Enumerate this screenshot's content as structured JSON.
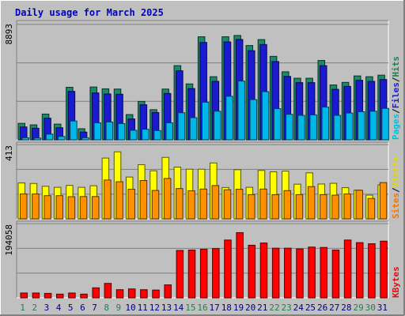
{
  "chart_data": {
    "type": "bar",
    "title": "Daily usage for March 2025",
    "categories": [
      "1",
      "2",
      "3",
      "4",
      "5",
      "6",
      "7",
      "8",
      "9",
      "10",
      "11",
      "12",
      "13",
      "14",
      "15",
      "16",
      "17",
      "18",
      "19",
      "20",
      "21",
      "22",
      "23",
      "24",
      "25",
      "26",
      "27",
      "28",
      "29",
      "30",
      "31"
    ],
    "weekend_days": [
      1,
      2,
      8,
      9,
      15,
      16,
      22,
      23,
      29,
      30
    ],
    "panels": [
      {
        "name": "traffic",
        "ymax_label": "8893",
        "ymax": 8893,
        "legend": [
          {
            "text": "Pages",
            "color": "#00c0e0"
          },
          {
            "text": "/",
            "color": "#000000"
          },
          {
            "text": "Files",
            "color": "#1a1ad0"
          },
          {
            "text": "/",
            "color": "#000000"
          },
          {
            "text": "Hits",
            "color": "#208050"
          }
        ],
        "series": [
          {
            "name": "Hits",
            "color": "#1a8a6a",
            "values": [
              1280,
              1160,
              2000,
              1220,
              4080,
              860,
              4100,
              3960,
              3940,
              1960,
              2980,
              2340,
              3940,
              5760,
              4340,
              8000,
              4900,
              8000,
              8100,
              7320,
              7780,
              6480,
              5280,
              4780,
              4780,
              6160,
              4260,
              4460,
              4960,
              4900,
              5020
            ]
          },
          {
            "name": "Files",
            "color": "#1a1ad0",
            "values": [
              1000,
              900,
              1680,
              940,
              3760,
              600,
              3640,
              3560,
              3540,
              1620,
              2720,
              2120,
              3600,
              5360,
              3980,
              7560,
              4540,
              7600,
              7790,
              6920,
              7400,
              6080,
              4920,
              4440,
              4440,
              5760,
              3920,
              4150,
              4620,
              4540,
              4680
            ]
          },
          {
            "name": "Pages",
            "color": "#00b8e8",
            "values": [
              160,
              140,
              440,
              260,
              1460,
              160,
              1320,
              1380,
              1260,
              740,
              820,
              720,
              1320,
              2100,
              1720,
              2920,
              2220,
              3380,
              4560,
              3120,
              3740,
              2420,
              1980,
              1900,
              1940,
              2540,
              1900,
              2080,
              2180,
              2220,
              2440
            ]
          }
        ]
      },
      {
        "name": "visits",
        "ymax_label": "413",
        "ymax": 413,
        "legend": [
          {
            "text": "Sites",
            "color": "#f07800"
          },
          {
            "text": "/",
            "color": "#000000"
          },
          {
            "text": "Visits",
            "color": "#e8d800"
          }
        ],
        "series": [
          {
            "name": "Visits",
            "color": "#ffff00",
            "values": [
              206,
              203,
              187,
              181,
              192,
              181,
              190,
              349,
              385,
              240,
              311,
              276,
              353,
              297,
              285,
              285,
              321,
              180,
              282,
              181,
              278,
              270,
              274,
              199,
              264,
              200,
              204,
              179,
              165,
              136,
              195
            ]
          },
          {
            "name": "Sites",
            "color": "#ff9000",
            "values": [
              143,
              143,
              133,
              133,
              127,
              128,
              128,
              223,
              213,
              170,
              220,
              163,
              232,
              174,
              161,
              171,
              191,
              167,
              170,
              139,
              171,
              139,
              162,
              139,
              185,
              139,
              136,
              143,
              164,
              117,
              208
            ]
          }
        ]
      },
      {
        "name": "kbytes",
        "ymax_label": "194058",
        "ymax": 194058,
        "legend": [
          {
            "text": "KBytes",
            "color": "#e01010"
          }
        ],
        "series": [
          {
            "name": "KBytes",
            "color": "#ff0000",
            "values": [
              13000,
              13000,
              12000,
              10000,
              13000,
              10000,
              27000,
              39000,
              22000,
              24000,
              22000,
              21000,
              35000,
              128000,
              129000,
              131000,
              133000,
              156000,
              176000,
              142000,
              148000,
              134000,
              134000,
              132000,
              137000,
              136000,
              129000,
              156000,
              149000,
              146000,
              153000
            ]
          }
        ]
      }
    ]
  }
}
